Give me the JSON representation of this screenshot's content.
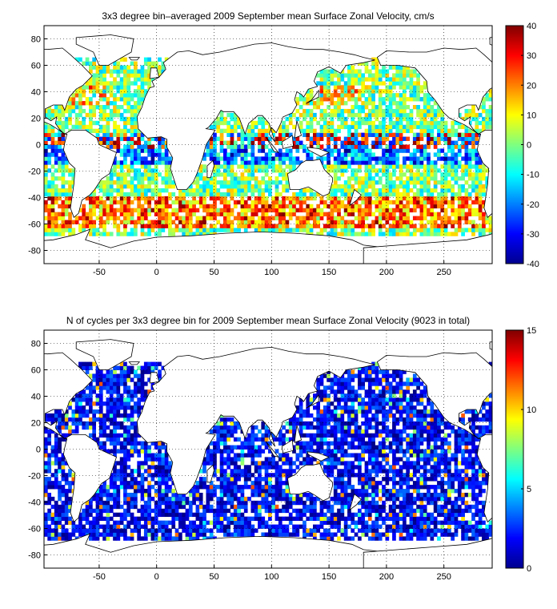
{
  "chart_data": [
    {
      "type": "heatmap",
      "title": "3x3 degree bin–averaged 2009 September mean Surface Zonal Velocity, cm/s",
      "xlabel": "",
      "ylabel": "",
      "xlim": [
        -98,
        292
      ],
      "ylim": [
        -90,
        90
      ],
      "x_ticks": [
        -50,
        0,
        50,
        100,
        150,
        200,
        250
      ],
      "y_ticks": [
        -80,
        -60,
        -40,
        -20,
        0,
        20,
        40,
        60,
        80
      ],
      "grid": true,
      "bin_size_deg": 3,
      "colorbar": {
        "min": -40,
        "max": 40,
        "ticks": [
          -40,
          -30,
          -20,
          -10,
          0,
          10,
          20,
          30,
          40
        ],
        "colormap": "jet"
      }
    },
    {
      "type": "heatmap",
      "title": "N of cycles per 3x3 degree bin for 2009 September mean Surface Zonal Velocity (9023 in total)",
      "xlabel": "",
      "ylabel": "",
      "xlim": [
        -98,
        292
      ],
      "ylim": [
        -90,
        90
      ],
      "x_ticks": [
        -50,
        0,
        50,
        100,
        150,
        200,
        250
      ],
      "y_ticks": [
        -80,
        -60,
        -40,
        -20,
        0,
        20,
        40,
        60,
        80
      ],
      "grid": true,
      "bin_size_deg": 3,
      "total_cycles": 9023,
      "colorbar": {
        "min": 0,
        "max": 15,
        "ticks": [
          0,
          5,
          10,
          15
        ],
        "colormap": "jet"
      }
    }
  ]
}
